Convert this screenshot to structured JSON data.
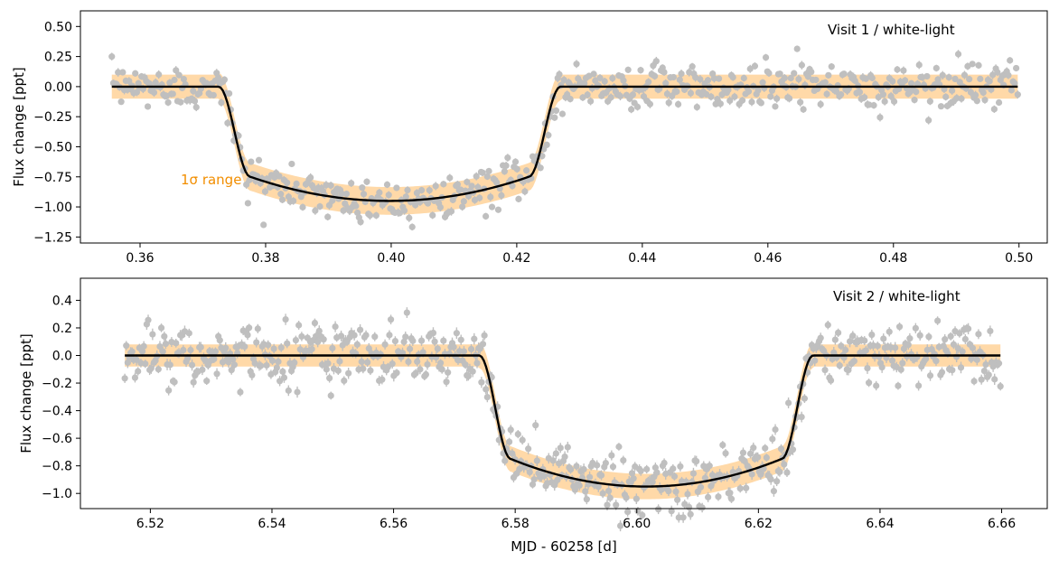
{
  "figure": {
    "shared_xlabel": "MJD - 60258 [d]",
    "band_label": "1σ range",
    "colors": {
      "data": "#bfbfbf",
      "model": "#000000",
      "band": "#ffd9a8",
      "band_label": "#f28e00",
      "axes": "#000000"
    }
  },
  "chart_data": [
    {
      "type": "scatter",
      "title": "Visit 1 / white-light",
      "xlabel": "",
      "ylabel": "Flux change [ppt]",
      "xlim": [
        0.3505,
        0.5045
      ],
      "ylim": [
        -1.3,
        0.63
      ],
      "xticks": [
        0.36,
        0.38,
        0.4,
        0.42,
        0.44,
        0.46,
        0.48,
        0.5
      ],
      "xtick_labels": [
        "0.36",
        "0.38",
        "0.40",
        "0.42",
        "0.44",
        "0.46",
        "0.48",
        "0.50"
      ],
      "yticks": [
        0.5,
        0.25,
        0.0,
        -0.25,
        -0.5,
        -0.75,
        -1.0,
        -1.25
      ],
      "ytick_labels": [
        "0.50",
        "0.25",
        "0.00",
        "−0.25",
        "−0.50",
        "−0.75",
        "−1.00",
        "−1.25"
      ],
      "transit": {
        "start": 0.3725,
        "end": 0.427,
        "ingress": 0.0051,
        "depth": 0.95,
        "edge_depth": 0.75,
        "baseline": 0.0
      },
      "data_range": [
        0.3555,
        0.4998
      ],
      "n_points": 580,
      "noise_scatter": 0.09,
      "band_halfwidth": 0.1,
      "error_bar": 0.03,
      "series": [
        {
          "name": "white-light data",
          "role": "data"
        },
        {
          "name": "transit model",
          "role": "model"
        },
        {
          "name": "1σ range",
          "role": "band"
        }
      ]
    },
    {
      "type": "scatter",
      "title": "Visit 2 / white-light",
      "xlabel": "MJD - 60258 [d]",
      "ylabel": "Flux change [ppt]",
      "xlim": [
        6.5085,
        6.6675
      ],
      "ylim": [
        -1.11,
        0.56
      ],
      "xticks": [
        6.52,
        6.54,
        6.56,
        6.58,
        6.6,
        6.62,
        6.64,
        6.66
      ],
      "xtick_labels": [
        "6.52",
        "6.54",
        "6.56",
        "6.58",
        "6.60",
        "6.62",
        "6.64",
        "6.66"
      ],
      "yticks": [
        0.4,
        0.2,
        0.0,
        -0.2,
        -0.4,
        -0.6,
        -0.8,
        -1.0
      ],
      "ytick_labels": [
        "0.4",
        "0.2",
        "0.0",
        "−0.2",
        "−0.4",
        "−0.6",
        "−0.8",
        "−1.0"
      ],
      "transit": {
        "start": 6.5741,
        "end": 6.629,
        "ingress": 0.0052,
        "depth": 0.95,
        "edge_depth": 0.75,
        "baseline": 0.0
      },
      "data_range": [
        6.5158,
        6.6598
      ],
      "n_points": 600,
      "noise_scatter": 0.11,
      "band_halfwidth": 0.08,
      "error_bar": 0.035,
      "series": [
        {
          "name": "white-light data",
          "role": "data"
        },
        {
          "name": "transit model",
          "role": "model"
        },
        {
          "name": "1σ range",
          "role": "band"
        }
      ]
    }
  ]
}
